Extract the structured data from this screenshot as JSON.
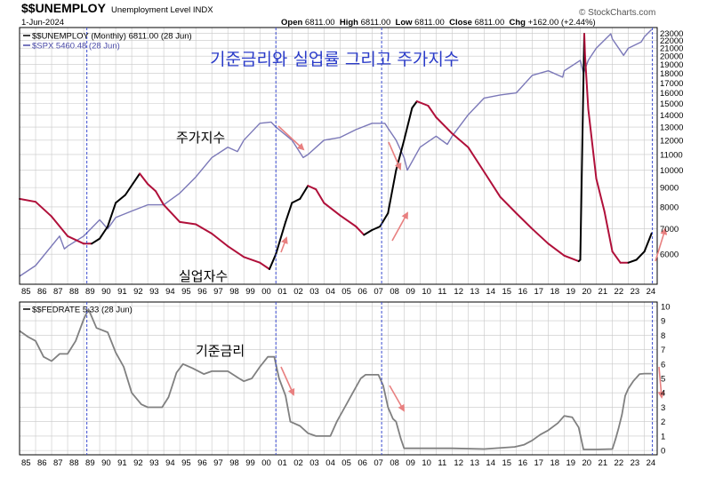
{
  "header": {
    "symbol": "$$UNEMPLOY",
    "name": "Unemployment Level INDX",
    "date": "1-Jun-2024",
    "brand": "© StockCharts.com",
    "quote": [
      {
        "label": "Open",
        "value": "6811.00"
      },
      {
        "label": "High",
        "value": "6811.00"
      },
      {
        "label": "Low",
        "value": "6811.00"
      },
      {
        "label": "Close",
        "value": "6811.00"
      },
      {
        "label": "Chg",
        "value": "+162.00 (+2.44%)"
      }
    ]
  },
  "colors": {
    "unemploy": "#b0103a",
    "unemploy_up": "#000000",
    "spx": "#7b78b8",
    "fedrate": "#808080",
    "vline": "#3a4bd0",
    "annotation": "#e88080",
    "title_kr": "#2a3bc9",
    "grid": "#c8c8c8"
  },
  "chart_data": [
    {
      "type": "line",
      "title": "기준금리와 실업률 그리고 주가지수",
      "legend_position": "top-left",
      "legend": [
        {
          "name": "$$UNEMPLOY (Monthly) 6811.00 (28 Jun)",
          "color": "#000000"
        },
        {
          "name": "$SPX 5460.48 (28 Jun)",
          "color": "#4a4aa8"
        }
      ],
      "annotations": [
        {
          "text": "주가지수",
          "x": 1997.8,
          "y": 13100
        },
        {
          "text": "실업자수",
          "x": 1997.8,
          "y": 5600
        }
      ],
      "x_tick_labels": [
        "85",
        "86",
        "87",
        "88",
        "89",
        "90",
        "91",
        "92",
        "93",
        "94",
        "95",
        "96",
        "97",
        "98",
        "99",
        "00",
        "01",
        "02",
        "03",
        "04",
        "05",
        "06",
        "07",
        "08",
        "09",
        "10",
        "11",
        "12",
        "13",
        "14",
        "15",
        "16",
        "17",
        "18",
        "19",
        "20",
        "21",
        "22",
        "23",
        "24"
      ],
      "x_range": [
        1985.0,
        2024.8
      ],
      "y_ticks": [
        6000,
        7000,
        8000,
        9000,
        10000,
        11000,
        12000,
        13000,
        14000,
        15000,
        16000,
        17000,
        18000,
        19000,
        20000,
        21000,
        22000,
        23000
      ],
      "y_tick_labels": [
        "6000",
        "7000",
        "8000",
        "9000",
        "10000",
        "11000",
        "12000",
        "13000",
        "14000",
        "15000",
        "16000",
        "17000",
        "18000",
        "19000",
        "20000",
        "21000",
        "22000",
        "23000"
      ],
      "y_range": [
        5000,
        23800
      ],
      "log_scale": true,
      "grid": true,
      "vertical_markers": [
        1989.2,
        2001.0,
        2007.6,
        2024.5
      ],
      "series": [
        {
          "name": "$$UNEMPLOY",
          "x": [
            1985.0,
            1986.0,
            1987.0,
            1988.0,
            1989.0,
            1989.5,
            1990.0,
            1990.5,
            1991.0,
            1991.6,
            1992.5,
            1993.0,
            1993.5,
            1994.0,
            1995.0,
            1996.0,
            1997.0,
            1998.0,
            1999.0,
            2000.0,
            2000.6,
            2001.0,
            2001.6,
            2002.0,
            2002.5,
            2003.0,
            2003.5,
            2004.0,
            2005.0,
            2006.0,
            2006.5,
            2007.0,
            2007.5,
            2008.0,
            2008.5,
            2009.0,
            2009.5,
            2009.8,
            2010.5,
            2011.0,
            2012.0,
            2013.0,
            2014.0,
            2015.0,
            2016.0,
            2017.0,
            2018.0,
            2019.0,
            2019.9,
            2020.0,
            2020.25,
            2020.3,
            2020.5,
            2021.0,
            2021.5,
            2022.0,
            2022.5,
            2023.0,
            2023.5,
            2024.0,
            2024.45
          ],
          "values": [
            8400,
            8250,
            7550,
            6700,
            6400,
            6400,
            6600,
            7100,
            8200,
            8600,
            9800,
            9200,
            8800,
            8100,
            7300,
            7200,
            6800,
            6300,
            5900,
            5700,
            5480,
            6000,
            7300,
            8200,
            8400,
            9100,
            8900,
            8200,
            7600,
            7100,
            6750,
            6950,
            7100,
            7700,
            10000,
            12000,
            14600,
            15200,
            14800,
            13800,
            12500,
            11500,
            9900,
            8500,
            7700,
            7000,
            6400,
            5950,
            5750,
            5800,
            22900,
            20000,
            14500,
            9500,
            7800,
            6100,
            5700,
            5700,
            5800,
            6100,
            6811
          ]
        },
        {
          "name": "$SPX",
          "x": [
            1985.0,
            1986.0,
            1987.5,
            1987.8,
            1988.0,
            1989.0,
            1990.0,
            1990.5,
            1991.0,
            1992.0,
            1993.0,
            1994.0,
            1995.0,
            1996.0,
            1997.0,
            1998.0,
            1998.6,
            1999.0,
            2000.0,
            2000.7,
            2001.0,
            2002.0,
            2002.7,
            2003.0,
            2004.0,
            2005.0,
            2006.0,
            2007.0,
            2007.8,
            2008.0,
            2008.5,
            2009.0,
            2009.2,
            2010.0,
            2011.0,
            2011.7,
            2012.0,
            2013.0,
            2014.0,
            2015.0,
            2016.0,
            2017.0,
            2018.0,
            2018.9,
            2019.0,
            2020.0,
            2020.2,
            2020.5,
            2021.0,
            2021.9,
            2022.0,
            2022.7,
            2023.0,
            2023.8,
            2024.0,
            2024.45
          ],
          "values": [
            5250,
            5600,
            6700,
            6200,
            6300,
            6700,
            7400,
            7000,
            7500,
            7800,
            8100,
            8100,
            8700,
            9600,
            10800,
            11500,
            11200,
            12000,
            13300,
            13400,
            13000,
            12000,
            10800,
            11000,
            12000,
            12200,
            12800,
            13300,
            13300,
            12900,
            12000,
            10800,
            10000,
            11500,
            12300,
            11700,
            12300,
            14000,
            15500,
            15800,
            16000,
            17800,
            18300,
            17600,
            18300,
            19500,
            18000,
            19500,
            21000,
            22900,
            22200,
            20100,
            21000,
            21800,
            22500,
            23500
          ]
        }
      ]
    },
    {
      "type": "line",
      "title": "",
      "legend_position": "top-left",
      "legend": [
        {
          "name": "$$FEDRATE 5.33 (28 Jun)",
          "color": "#000000"
        }
      ],
      "annotations": [
        {
          "text": "기준금리",
          "x": 1997.5,
          "y": 6.3
        }
      ],
      "x_tick_labels": [
        "85",
        "86",
        "87",
        "88",
        "89",
        "90",
        "91",
        "92",
        "93",
        "94",
        "95",
        "96",
        "97",
        "98",
        "99",
        "00",
        "01",
        "02",
        "03",
        "04",
        "05",
        "06",
        "07",
        "08",
        "09",
        "10",
        "11",
        "12",
        "13",
        "14",
        "15",
        "16",
        "17",
        "18",
        "19",
        "20",
        "21",
        "22",
        "23",
        "24"
      ],
      "x_range": [
        1985.0,
        2024.8
      ],
      "y_ticks": [
        0,
        1,
        2,
        3,
        4,
        5,
        6,
        7,
        8,
        9,
        10
      ],
      "y_tick_labels": [
        "0",
        "1",
        "2",
        "3",
        "4",
        "5",
        "6",
        "7",
        "8",
        "9",
        "10"
      ],
      "y_range": [
        -0.3,
        10.3
      ],
      "grid": true,
      "vertical_markers": [
        1989.2,
        2001.0,
        2007.6,
        2024.5
      ],
      "series": [
        {
          "name": "$$FEDRATE",
          "x": [
            1985.0,
            1985.5,
            1986.0,
            1986.5,
            1987.0,
            1987.5,
            1988.0,
            1988.5,
            1989.0,
            1989.3,
            1989.8,
            1990.5,
            1991.0,
            1991.5,
            1992.0,
            1992.6,
            1993.0,
            1993.9,
            1994.3,
            1994.8,
            1995.2,
            1995.8,
            1996.5,
            1997.0,
            1997.5,
            1998.0,
            1998.7,
            1999.0,
            1999.5,
            2000.0,
            2000.5,
            2000.9,
            2001.2,
            2001.6,
            2001.9,
            2002.5,
            2003.0,
            2003.5,
            2004.0,
            2004.4,
            2004.8,
            2005.3,
            2005.8,
            2006.3,
            2006.6,
            2007.4,
            2007.7,
            2008.0,
            2008.3,
            2008.5,
            2008.8,
            2009.0,
            2010.0,
            2012.0,
            2014.0,
            2015.9,
            2016.5,
            2017.0,
            2017.5,
            2018.0,
            2018.6,
            2019.0,
            2019.5,
            2019.9,
            2020.2,
            2021.0,
            2022.0,
            2022.2,
            2022.4,
            2022.6,
            2022.8,
            2023.0,
            2023.3,
            2023.7,
            2024.0,
            2024.45
          ],
          "values": [
            8.3,
            7.9,
            7.6,
            6.5,
            6.2,
            6.7,
            6.7,
            7.6,
            9.1,
            9.8,
            8.5,
            8.2,
            6.8,
            5.8,
            4.0,
            3.2,
            3.0,
            3.0,
            3.7,
            5.4,
            6.0,
            5.7,
            5.3,
            5.5,
            5.5,
            5.5,
            5.0,
            4.8,
            5.0,
            5.8,
            6.5,
            6.5,
            5.0,
            3.8,
            2.0,
            1.7,
            1.2,
            1.0,
            1.0,
            1.0,
            2.0,
            3.0,
            4.0,
            5.0,
            5.25,
            5.25,
            4.5,
            3.0,
            2.2,
            2.0,
            0.8,
            0.15,
            0.15,
            0.15,
            0.1,
            0.25,
            0.4,
            0.7,
            1.1,
            1.4,
            1.9,
            2.4,
            2.3,
            1.6,
            0.07,
            0.07,
            0.1,
            0.8,
            1.6,
            2.5,
            3.8,
            4.3,
            4.8,
            5.3,
            5.33,
            5.33
          ]
        }
      ]
    }
  ]
}
